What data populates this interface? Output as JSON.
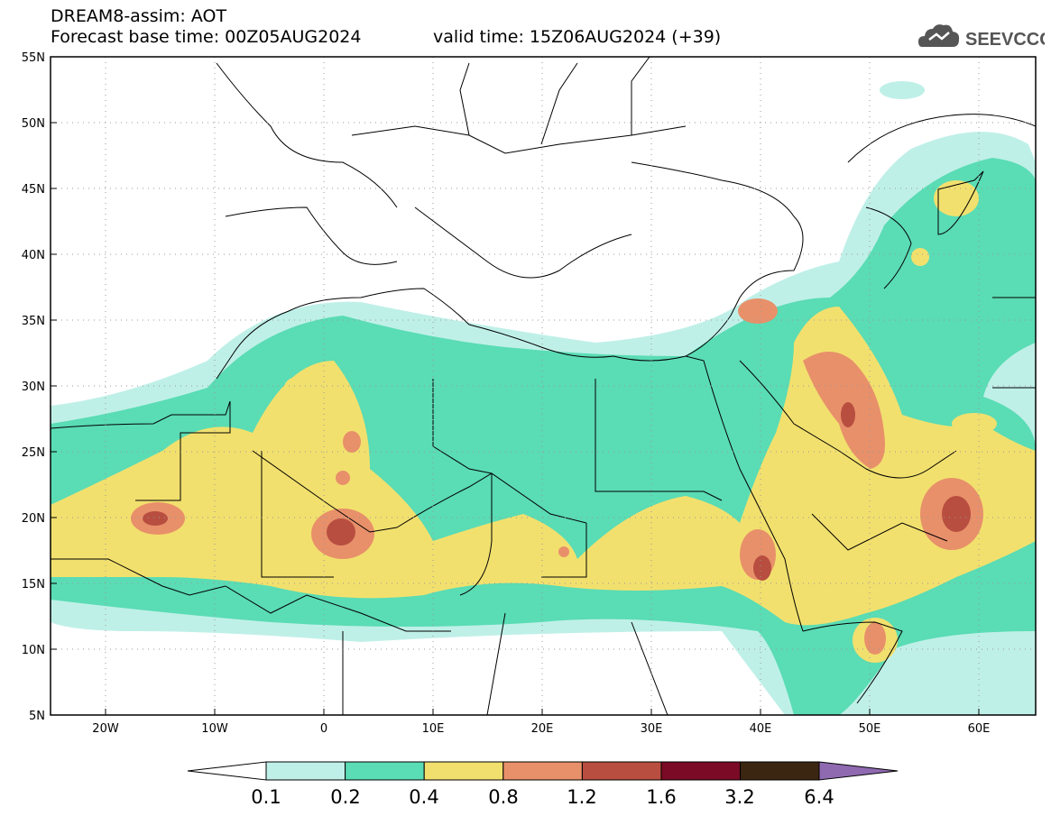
{
  "header": {
    "title": "DREAM8-assim: AOT",
    "base_time": "Forecast base time: 00Z05AUG2024",
    "valid_time": "valid time: 15Z06AUG2024 (+39)"
  },
  "logo": {
    "text": "SEEVCCC"
  },
  "axes": {
    "lat_labels": [
      "5N",
      "10N",
      "15N",
      "20N",
      "25N",
      "30N",
      "35N",
      "40N",
      "45N",
      "50N",
      "55N"
    ],
    "lon_labels": [
      "20W",
      "10W",
      "0",
      "10E",
      "20E",
      "30E",
      "40E",
      "50E",
      "60E"
    ]
  },
  "colorbar": {
    "tick_labels": [
      "0.1",
      "0.2",
      "0.4",
      "0.8",
      "1.2",
      "1.6",
      "3.2",
      "6.4"
    ],
    "colors": [
      "#bff0e8",
      "#5adcb4",
      "#f2e06e",
      "#e8906a",
      "#b84e40",
      "#7a0a25",
      "#3b2612",
      "#8f6ab0"
    ]
  },
  "palette": {
    "aot_0_1": "#bff0e8",
    "aot_0_2": "#5adcb4",
    "aot_0_4": "#f2e06e",
    "aot_0_8": "#e8906a",
    "aot_1_2": "#b84e40"
  }
}
